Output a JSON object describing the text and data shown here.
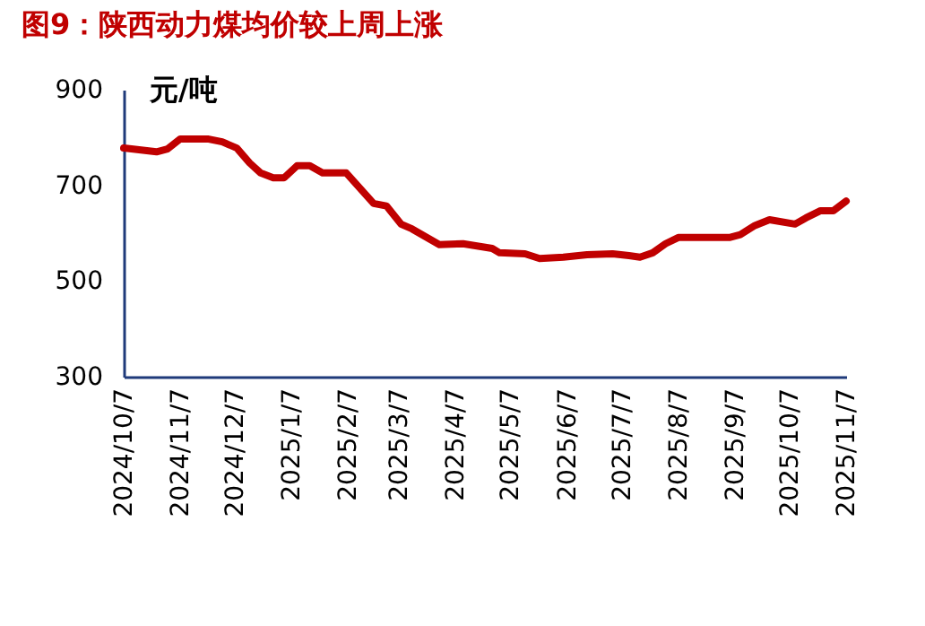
{
  "chart_data": {
    "type": "line",
    "title": "图9：陕西动力煤均价较上周上涨",
    "ylabel": "元/吨",
    "x": [
      "2024-10-07",
      "2024-10-25",
      "2024-10-31",
      "2024-11-07",
      "2024-11-22",
      "2024-11-30",
      "2024-12-08",
      "2024-12-15",
      "2024-12-21",
      "2024-12-28",
      "2025-01-03",
      "2025-01-10",
      "2025-01-17",
      "2025-01-24",
      "2025-02-06",
      "2025-02-21",
      "2025-02-28",
      "2025-03-08",
      "2025-03-14",
      "2025-03-29",
      "2025-04-11",
      "2025-04-27",
      "2025-05-01",
      "2025-05-15",
      "2025-05-23",
      "2025-06-05",
      "2025-06-18",
      "2025-07-02",
      "2025-07-11",
      "2025-07-17",
      "2025-07-24",
      "2025-07-31",
      "2025-08-07",
      "2025-09-04",
      "2025-09-10",
      "2025-09-18",
      "2025-09-26",
      "2025-10-10",
      "2025-10-16",
      "2025-10-24",
      "2025-10-31",
      "2025-11-07"
    ],
    "series": [
      {
        "color": "#c00000",
        "values": [
          778,
          770,
          776,
          797,
          797,
          791,
          778,
          747,
          726,
          716,
          716,
          741,
          741,
          726,
          726,
          662,
          657,
          619,
          609,
          576,
          578,
          568,
          559,
          557,
          547,
          550,
          555,
          557,
          553,
          550,
          559,
          578,
          591,
          591,
          597,
          616,
          628,
          619,
          632,
          647,
          647,
          667
        ]
      }
    ],
    "xlim": [
      "2024-10-07",
      "2025-11-07"
    ],
    "xticks": [
      {
        "value": "2024-10-07",
        "label": "2024/10/7"
      },
      {
        "value": "2024-11-07",
        "label": "2024/11/7"
      },
      {
        "value": "2024-12-07",
        "label": "2024/12/7"
      },
      {
        "value": "2025-01-07",
        "label": "2025/1/7"
      },
      {
        "value": "2025-02-07",
        "label": "2025/2/7"
      },
      {
        "value": "2025-03-07",
        "label": "2025/3/7"
      },
      {
        "value": "2025-04-07",
        "label": "2025/4/7"
      },
      {
        "value": "2025-05-07",
        "label": "2025/5/7"
      },
      {
        "value": "2025-06-07",
        "label": "2025/6/7"
      },
      {
        "value": "2025-07-07",
        "label": "2025/7/7"
      },
      {
        "value": "2025-08-07",
        "label": "2025/8/7"
      },
      {
        "value": "2025-09-07",
        "label": "2025/9/7"
      },
      {
        "value": "2025-10-07",
        "label": "2025/10/7"
      },
      {
        "value": "2025-11-07",
        "label": "2025/11/7"
      }
    ],
    "ylim": [
      300,
      900
    ],
    "yticks": [
      300,
      500,
      700,
      900
    ],
    "grid": false,
    "marker": "none",
    "line_style": "solid"
  }
}
